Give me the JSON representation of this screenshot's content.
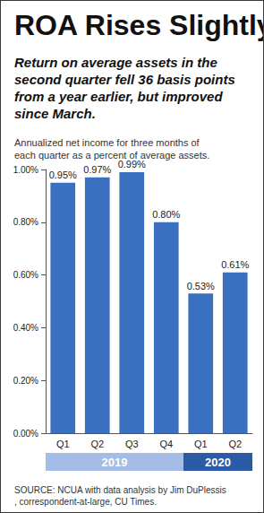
{
  "chart_data": {
    "type": "bar",
    "title": "ROA Rises Slightly",
    "subtitle": "Return on average assets in the second quarter fell 36 basis points from a year earlier, but improved since March.",
    "annotations": [
      "Annualized net income for three months of each quarter as a percent of average assets.",
      "SOURCE: NCUA with data analysis by Jim DuPlessis, correspondent-at-large, CU Times."
    ],
    "categories": [
      "Q1",
      "Q2",
      "Q3",
      "Q4",
      "Q1",
      "Q2"
    ],
    "values": [
      0.95,
      0.97,
      0.99,
      0.8,
      0.53,
      0.61
    ],
    "value_labels": [
      "0.95%",
      "0.97%",
      "0.99%",
      "0.80%",
      "0.53%",
      "0.61%"
    ],
    "color": "#3b6fc0",
    "ylim": [
      0,
      1
    ],
    "yticks": [
      {
        "value": 0,
        "label": "0.00%"
      },
      {
        "value": 0.2,
        "label": "0.20%"
      },
      {
        "value": 0.4,
        "label": "0.40%"
      },
      {
        "value": 0.6,
        "label": "0.60%"
      },
      {
        "value": 0.8,
        "label": "0.80%"
      },
      {
        "value": 1,
        "label": "1.00%"
      }
    ],
    "grid": false,
    "data_labels": true,
    "groups": [
      {
        "label": "2019",
        "span": 4,
        "color": "#a3bde6"
      },
      {
        "label": "2020",
        "span": 2,
        "color": "#2b5aa6"
      }
    ]
  }
}
